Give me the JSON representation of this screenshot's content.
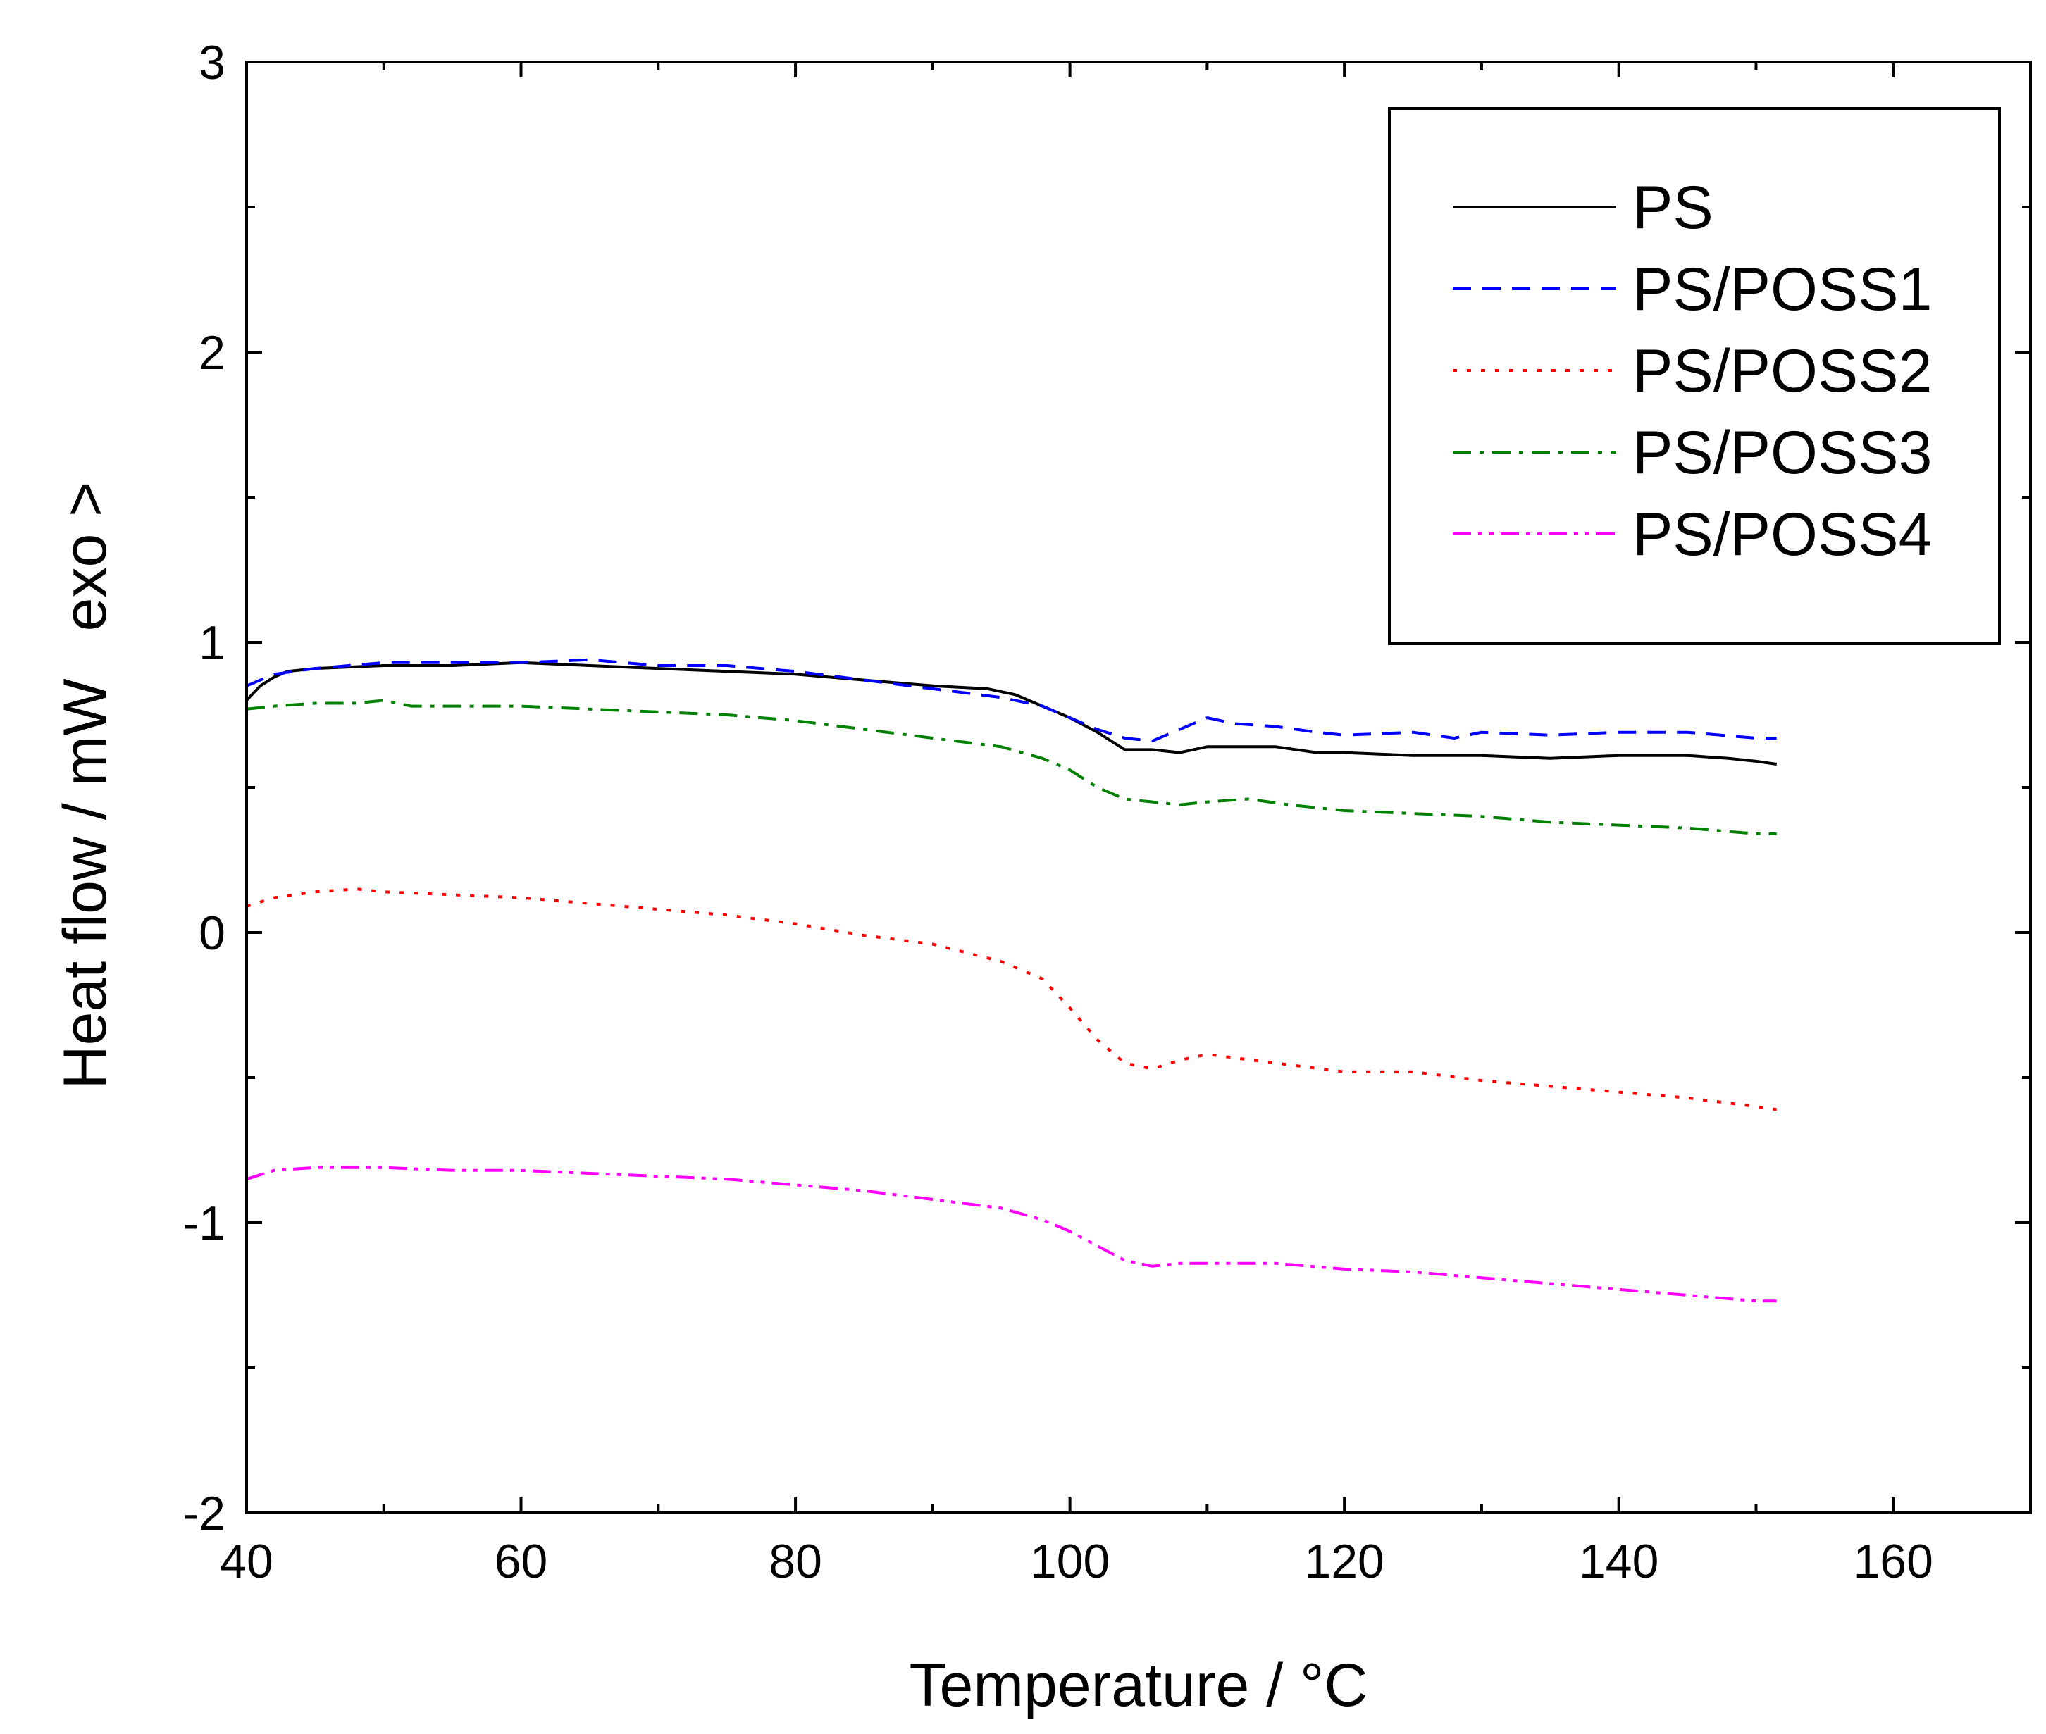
{
  "chart_data": {
    "type": "line",
    "xlabel": "Temperature / °C",
    "ylabel": "Heat flow / mW",
    "ylabel_suffix": "exo >",
    "xlim": [
      40,
      170
    ],
    "ylim": [
      -2,
      3
    ],
    "xticks": [
      40,
      60,
      80,
      100,
      120,
      140,
      160
    ],
    "xtick_labels": [
      "40",
      "60",
      "80",
      "100",
      "120",
      "140",
      "160"
    ],
    "yticks": [
      -2,
      -1,
      0,
      1,
      2,
      3
    ],
    "ytick_labels": [
      "-2",
      "-1",
      "0",
      "1",
      "2",
      "3"
    ],
    "legend_position": "top-right",
    "series": [
      {
        "name": "PS",
        "color": "#000000",
        "dash": "solid",
        "x": [
          40,
          41,
          42,
          43,
          45,
          50,
          55,
          60,
          65,
          70,
          75,
          80,
          85,
          90,
          94,
          96,
          98,
          100,
          102,
          104,
          106,
          108,
          110,
          112,
          115,
          118,
          120,
          125,
          130,
          135,
          140,
          145,
          148,
          150,
          151.5
        ],
        "y": [
          0.8,
          0.85,
          0.88,
          0.9,
          0.91,
          0.92,
          0.92,
          0.93,
          0.92,
          0.91,
          0.9,
          0.89,
          0.87,
          0.85,
          0.84,
          0.82,
          0.78,
          0.74,
          0.69,
          0.63,
          0.63,
          0.62,
          0.64,
          0.64,
          0.64,
          0.62,
          0.62,
          0.61,
          0.61,
          0.6,
          0.61,
          0.61,
          0.6,
          0.59,
          0.58
        ]
      },
      {
        "name": "PS/POSS1",
        "color": "#0000ff",
        "dash": "dashed",
        "x": [
          40,
          42,
          45,
          50,
          55,
          60,
          65,
          70,
          75,
          80,
          85,
          90,
          95,
          98,
          100,
          102,
          104,
          106,
          108,
          110,
          112,
          115,
          118,
          120,
          125,
          128,
          130,
          135,
          140,
          145,
          150,
          151.5
        ],
        "y": [
          0.85,
          0.89,
          0.91,
          0.93,
          0.93,
          0.93,
          0.94,
          0.92,
          0.92,
          0.9,
          0.87,
          0.84,
          0.81,
          0.78,
          0.74,
          0.7,
          0.67,
          0.66,
          0.7,
          0.74,
          0.72,
          0.71,
          0.69,
          0.68,
          0.69,
          0.67,
          0.69,
          0.68,
          0.69,
          0.69,
          0.67,
          0.67
        ]
      },
      {
        "name": "PS/POSS2",
        "color": "#ff0000",
        "dash": "dotted",
        "x": [
          40,
          42,
          45,
          48,
          50,
          55,
          60,
          65,
          70,
          75,
          80,
          85,
          90,
          95,
          98,
          100,
          102,
          104,
          106,
          108,
          110,
          115,
          120,
          125,
          130,
          135,
          140,
          145,
          150,
          151.5
        ],
        "y": [
          0.09,
          0.12,
          0.14,
          0.15,
          0.14,
          0.13,
          0.12,
          0.1,
          0.08,
          0.06,
          0.03,
          -0.01,
          -0.04,
          -0.1,
          -0.16,
          -0.26,
          -0.37,
          -0.45,
          -0.47,
          -0.44,
          -0.42,
          -0.45,
          -0.48,
          -0.48,
          -0.51,
          -0.53,
          -0.55,
          -0.57,
          -0.6,
          -0.61
        ]
      },
      {
        "name": "PS/POSS3",
        "color": "#008000",
        "dash": "dashdot",
        "x": [
          40,
          42,
          45,
          48,
          50,
          52,
          55,
          60,
          65,
          70,
          75,
          80,
          85,
          90,
          95,
          98,
          100,
          102,
          104,
          106,
          108,
          110,
          113,
          116,
          120,
          125,
          130,
          135,
          140,
          145,
          150,
          151.5
        ],
        "y": [
          0.77,
          0.78,
          0.79,
          0.79,
          0.8,
          0.78,
          0.78,
          0.78,
          0.77,
          0.76,
          0.75,
          0.73,
          0.7,
          0.67,
          0.64,
          0.6,
          0.56,
          0.5,
          0.46,
          0.45,
          0.44,
          0.45,
          0.46,
          0.44,
          0.42,
          0.41,
          0.4,
          0.38,
          0.37,
          0.36,
          0.34,
          0.34
        ]
      },
      {
        "name": "PS/POSS4",
        "color": "#ff00ff",
        "dash": "dashdotdot",
        "x": [
          40,
          42,
          45,
          50,
          55,
          60,
          65,
          70,
          75,
          80,
          85,
          90,
          95,
          98,
          100,
          102,
          104,
          106,
          108,
          110,
          115,
          120,
          125,
          130,
          135,
          140,
          145,
          150,
          151.5
        ],
        "y": [
          -0.85,
          -0.82,
          -0.81,
          -0.81,
          -0.82,
          -0.82,
          -0.83,
          -0.84,
          -0.85,
          -0.87,
          -0.89,
          -0.92,
          -0.95,
          -0.99,
          -1.03,
          -1.08,
          -1.13,
          -1.15,
          -1.14,
          -1.14,
          -1.14,
          -1.16,
          -1.17,
          -1.19,
          -1.21,
          -1.23,
          -1.25,
          -1.27,
          -1.27
        ]
      }
    ]
  }
}
